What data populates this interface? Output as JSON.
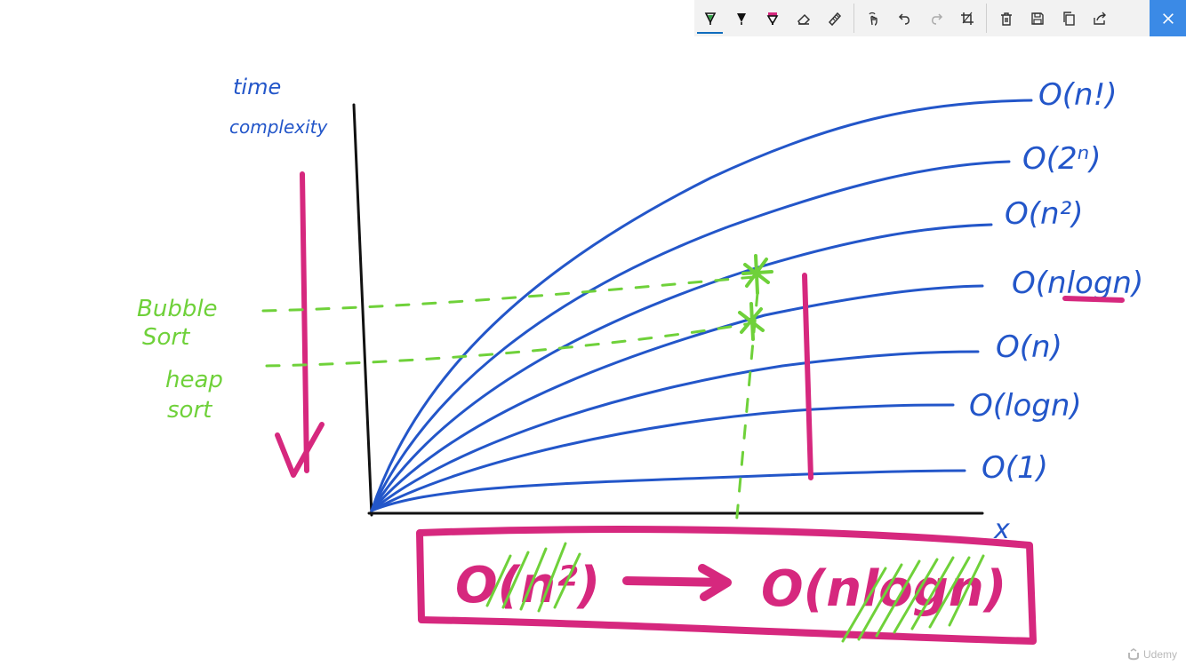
{
  "toolbar": {
    "tools": [
      {
        "name": "ballpoint-pen",
        "icon": "pen-icon",
        "color": "#2f9e44",
        "active": true
      },
      {
        "name": "pencil",
        "icon": "pencil-icon",
        "color": "#111111"
      },
      {
        "name": "highlighter",
        "icon": "highlighter-icon",
        "color": "#d6287e"
      },
      {
        "name": "eraser",
        "icon": "eraser-icon"
      },
      {
        "name": "ruler",
        "icon": "ruler-icon"
      },
      {
        "name": "touch-writing",
        "icon": "touch-writing-icon"
      },
      {
        "name": "undo",
        "icon": "undo-icon"
      },
      {
        "name": "redo",
        "icon": "redo-icon",
        "disabled": true
      },
      {
        "name": "crop",
        "icon": "crop-icon"
      },
      {
        "name": "clear",
        "icon": "trash-icon"
      },
      {
        "name": "save",
        "icon": "save-icon"
      },
      {
        "name": "copy",
        "icon": "copy-icon"
      },
      {
        "name": "share",
        "icon": "share-icon"
      },
      {
        "name": "close",
        "icon": "close-icon"
      }
    ],
    "accent": "#3b8ae6"
  },
  "drawing": {
    "y_axis_label_line1": "time",
    "y_axis_label_line2": "complexity",
    "x_axis_label": "x",
    "curve_labels": [
      "O(n!)",
      "O(2ⁿ)",
      "O(n²)",
      "O(nlogn)",
      "O(n)",
      "O(logn)",
      "O(1)"
    ],
    "annotations": {
      "bubble_line1": "Bubble",
      "bubble_line2": "Sort",
      "heap_line1": "heap",
      "heap_line2": "sort"
    },
    "bottom_box": {
      "left": "O(n²)",
      "right": "O(nlogn)"
    },
    "colors": {
      "curves": "#2356c9",
      "pink": "#d6287e",
      "green": "#6fd13a",
      "axes": "#111111"
    }
  },
  "watermark": {
    "text": "Udemy"
  }
}
